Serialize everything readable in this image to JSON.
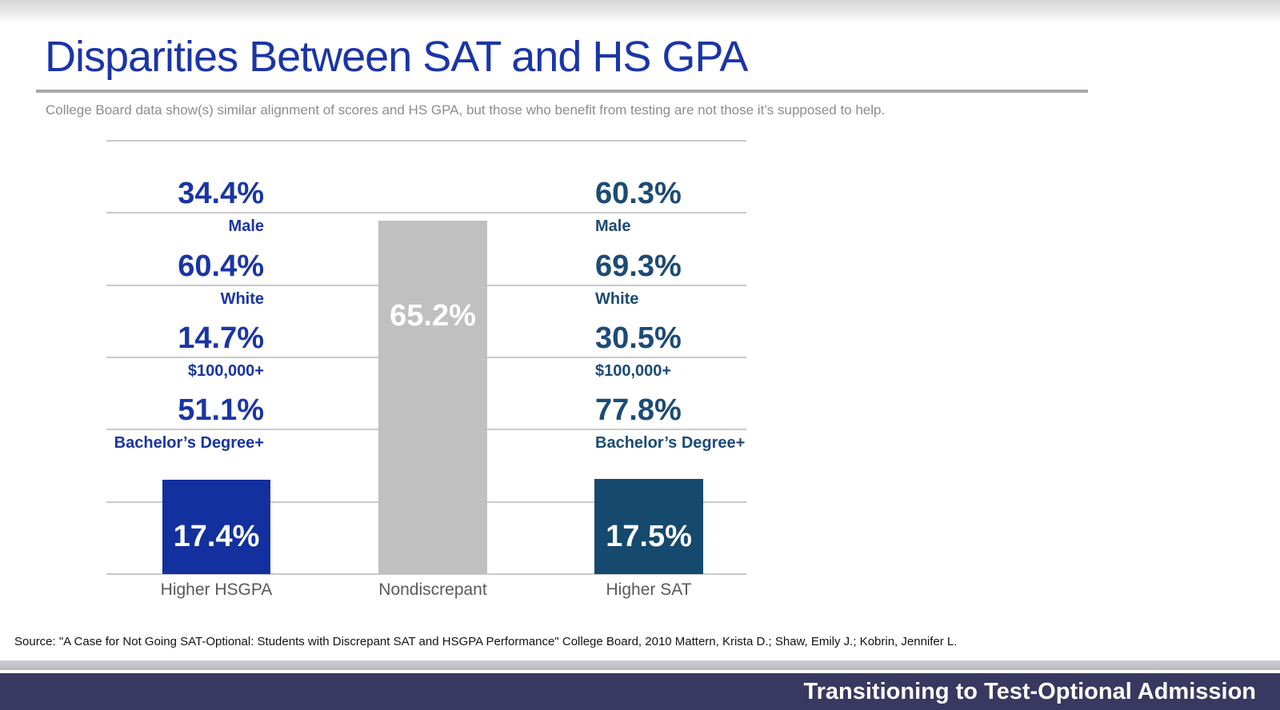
{
  "slide": {
    "title": "Disparities Between SAT and HS GPA",
    "subtitle": "College Board data show(s) similar alignment of scores and HS GPA, but those who benefit from testing are not those it’s supposed to help.",
    "source": "Source: \"A Case for Not Going SAT-Optional: Students with Discrepant SAT and HSGPA Performance\" College Board, 2010 Mattern, Krista D.; Shaw, Emily J.; Kobrin, Jennifer L.",
    "footer": "Transitioning to Test-Optional Admission"
  },
  "colors": {
    "title_blue": "#1b35a7",
    "left_text_blue": "#1a35a3",
    "left_bar_blue": "#12309e",
    "right_text_blue": "#1c4b75",
    "right_bar_blue": "#15496e",
    "gray_bar": "#c0c0c0",
    "gridline": "#c9c9c9",
    "category_gray": "#595959",
    "footer_navy": "#383860"
  },
  "chart_data": {
    "type": "bar",
    "categories": [
      "Higher HSGPA",
      "Nondiscrepant",
      "Higher SAT"
    ],
    "values": [
      17.4,
      65.2,
      17.5
    ],
    "bar_labels": [
      "17.4%",
      "65.2%",
      "17.5%"
    ],
    "title": "",
    "xlabel": "",
    "ylabel": "",
    "ylim": [
      0,
      80
    ],
    "grid_divisions": 6,
    "grid": true,
    "legend": "none",
    "annotations": {
      "higher_hsgpa": [
        {
          "value": "34.4%",
          "label": "Male"
        },
        {
          "value": "60.4%",
          "label": "White"
        },
        {
          "value": "14.7%",
          "label": "$100,000+"
        },
        {
          "value": "51.1%",
          "label": "Bachelor’s Degree+"
        }
      ],
      "higher_sat": [
        {
          "value": "60.3%",
          "label": "Male"
        },
        {
          "value": "69.3%",
          "label": "White"
        },
        {
          "value": "30.5%",
          "label": "$100,000+"
        },
        {
          "value": "77.8%",
          "label": "Bachelor’s Degree+"
        }
      ]
    }
  }
}
